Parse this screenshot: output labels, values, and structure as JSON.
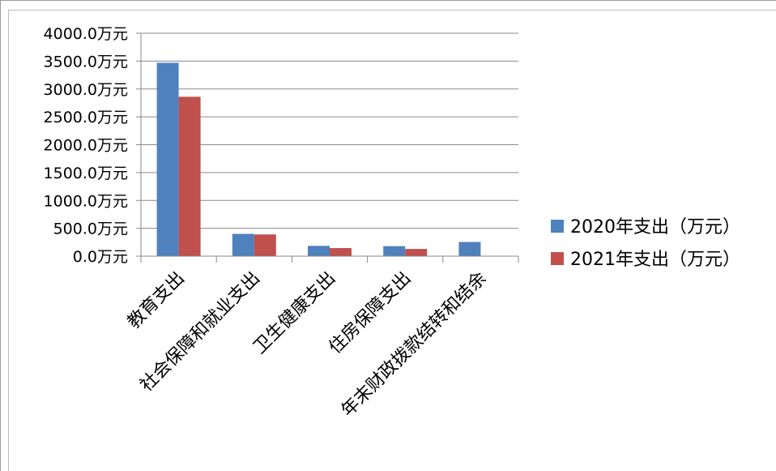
{
  "chart_data": {
    "type": "bar",
    "title": "",
    "xlabel": "",
    "ylabel": "",
    "categories": [
      "教育支出",
      "社会保障和就业支出",
      "卫生健康支出",
      "住房保障支出",
      "年末财政拨款结转和结余"
    ],
    "series": [
      {
        "name": "2020年支出（万元）",
        "values": [
          3470,
          400,
          185,
          180,
          255
        ],
        "color": "#4F81BD"
      },
      {
        "name": "2021年支出（万元）",
        "values": [
          2860,
          390,
          145,
          130,
          0
        ],
        "color": "#C0504D"
      }
    ],
    "ylim": [
      0,
      4000
    ],
    "yticks": [
      {
        "value": 0,
        "label": "0.0万元"
      },
      {
        "value": 500,
        "label": "500.0万元"
      },
      {
        "value": 1000,
        "label": "1000.0万元"
      },
      {
        "value": 1500,
        "label": "1500.0万元"
      },
      {
        "value": 2000,
        "label": "2000.0万元"
      },
      {
        "value": 2500,
        "label": "2500.0万元"
      },
      {
        "value": 3000,
        "label": "3000.0万元"
      },
      {
        "value": 3500,
        "label": "3500.0万元"
      },
      {
        "value": 4000,
        "label": "4000.0万元"
      }
    ],
    "grid": true,
    "legend_position": "right"
  }
}
